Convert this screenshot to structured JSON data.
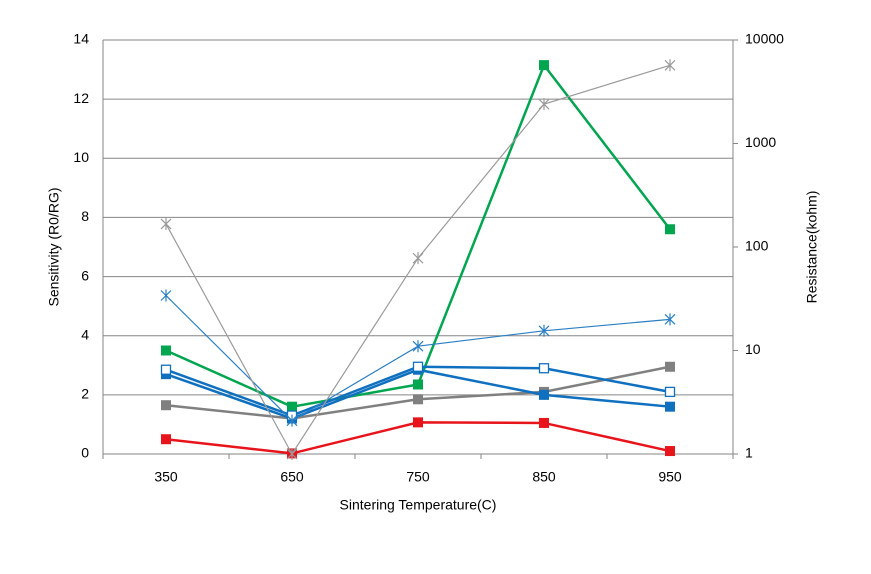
{
  "chart_data": {
    "type": "line",
    "x_label": "Sintering Temperature(C)",
    "y_label": "Sensitivity (R0/RG)",
    "y2_label": "Resistance(kohm)",
    "categories": [
      "350",
      "650",
      "750",
      "850",
      "950"
    ],
    "ylim": [
      0,
      14
    ],
    "yticks": [
      0,
      2,
      4,
      6,
      8,
      10,
      12,
      14
    ],
    "y2lim": [
      1,
      10000
    ],
    "y2ticks": [
      1,
      10,
      100,
      1000,
      10000
    ],
    "y2scale": "log",
    "grid": true,
    "series": [
      {
        "color": "#00a550",
        "marker": "square",
        "values": [
          3.5,
          1.6,
          2.35,
          13.15,
          7.6
        ]
      },
      {
        "color": "#e8141b",
        "marker": "square",
        "values": [
          0.5,
          0.02,
          1.07,
          1.05,
          0.1
        ]
      },
      {
        "color": "#808080",
        "marker": "square",
        "values": [
          1.65,
          1.2,
          1.85,
          2.1,
          2.95
        ]
      },
      {
        "color": "#1070c0",
        "marker": "square",
        "values": [
          2.7,
          1.2,
          2.85,
          2.0,
          1.6
        ]
      },
      {
        "color": "#1070c0",
        "marker": "open-square",
        "values": [
          2.85,
          1.3,
          2.95,
          2.9,
          2.1
        ]
      },
      {
        "color": "#2a7fc4",
        "marker": "star",
        "axis": "y2",
        "values": [
          34,
          2.1,
          11,
          15.5,
          20
        ]
      },
      {
        "color": "#9a9a9a",
        "marker": "star",
        "axis": "y2",
        "values": [
          167,
          1,
          78,
          2400,
          5700
        ]
      }
    ]
  }
}
